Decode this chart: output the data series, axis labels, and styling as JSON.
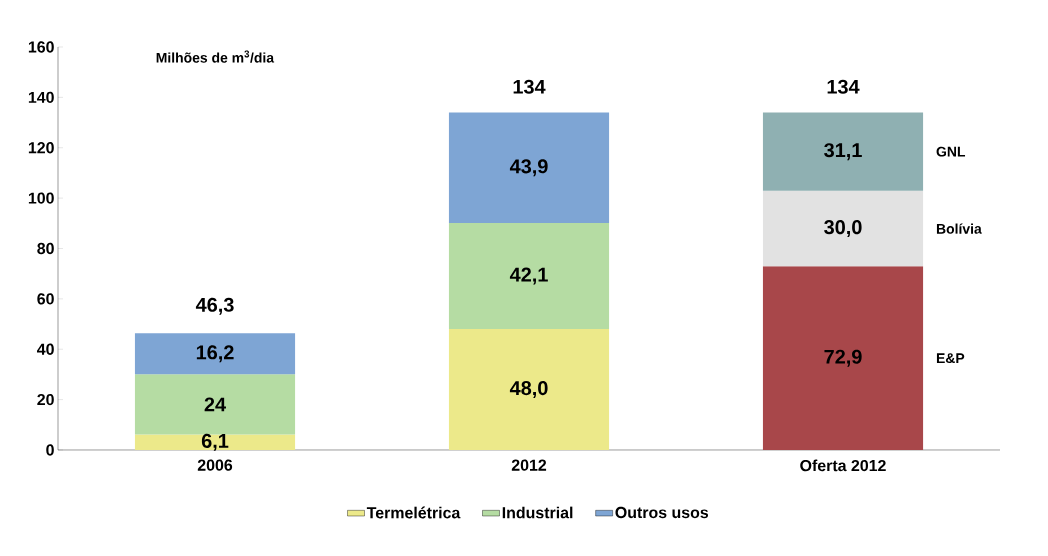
{
  "chart_data": {
    "type": "bar",
    "stacked": true,
    "ylabel": "Milhões de m$^{3}$/dia",
    "categories": [
      "2006",
      "2012",
      "Oferta 2012"
    ],
    "series": [
      {
        "name": "Termelétrica",
        "color": "#ece98a",
        "values": [
          6.1,
          48.0,
          null
        ],
        "value_labels": [
          "6,1",
          "48,0",
          null
        ]
      },
      {
        "name": "Industrial",
        "color": "#b5dca3",
        "values": [
          24,
          42.1,
          null
        ],
        "value_labels": [
          "24",
          "42,1",
          null
        ]
      },
      {
        "name": "Outros usos",
        "color": "#7ea5d4",
        "values": [
          16.2,
          43.9,
          null
        ],
        "value_labels": [
          "16,2",
          "43,9",
          null
        ]
      },
      {
        "name": "E&P",
        "color": "#a8474a",
        "values": [
          null,
          null,
          72.9
        ],
        "value_labels": [
          null,
          null,
          "72,9"
        ]
      },
      {
        "name": "Bolívia",
        "color": "#e2e2e2",
        "values": [
          null,
          null,
          30.0
        ],
        "value_labels": [
          null,
          null,
          "30,0"
        ]
      },
      {
        "name": "GNL",
        "color": "#8fb0b2",
        "values": [
          null,
          null,
          31.1
        ],
        "value_labels": [
          null,
          null,
          "31,1"
        ]
      }
    ],
    "totals": [
      "46,3",
      "134",
      "134"
    ],
    "ylim": [
      0,
      160
    ],
    "yticks": [
      0,
      20,
      40,
      60,
      80,
      100,
      120,
      140,
      160
    ],
    "grid": false,
    "legend": "bottom"
  }
}
